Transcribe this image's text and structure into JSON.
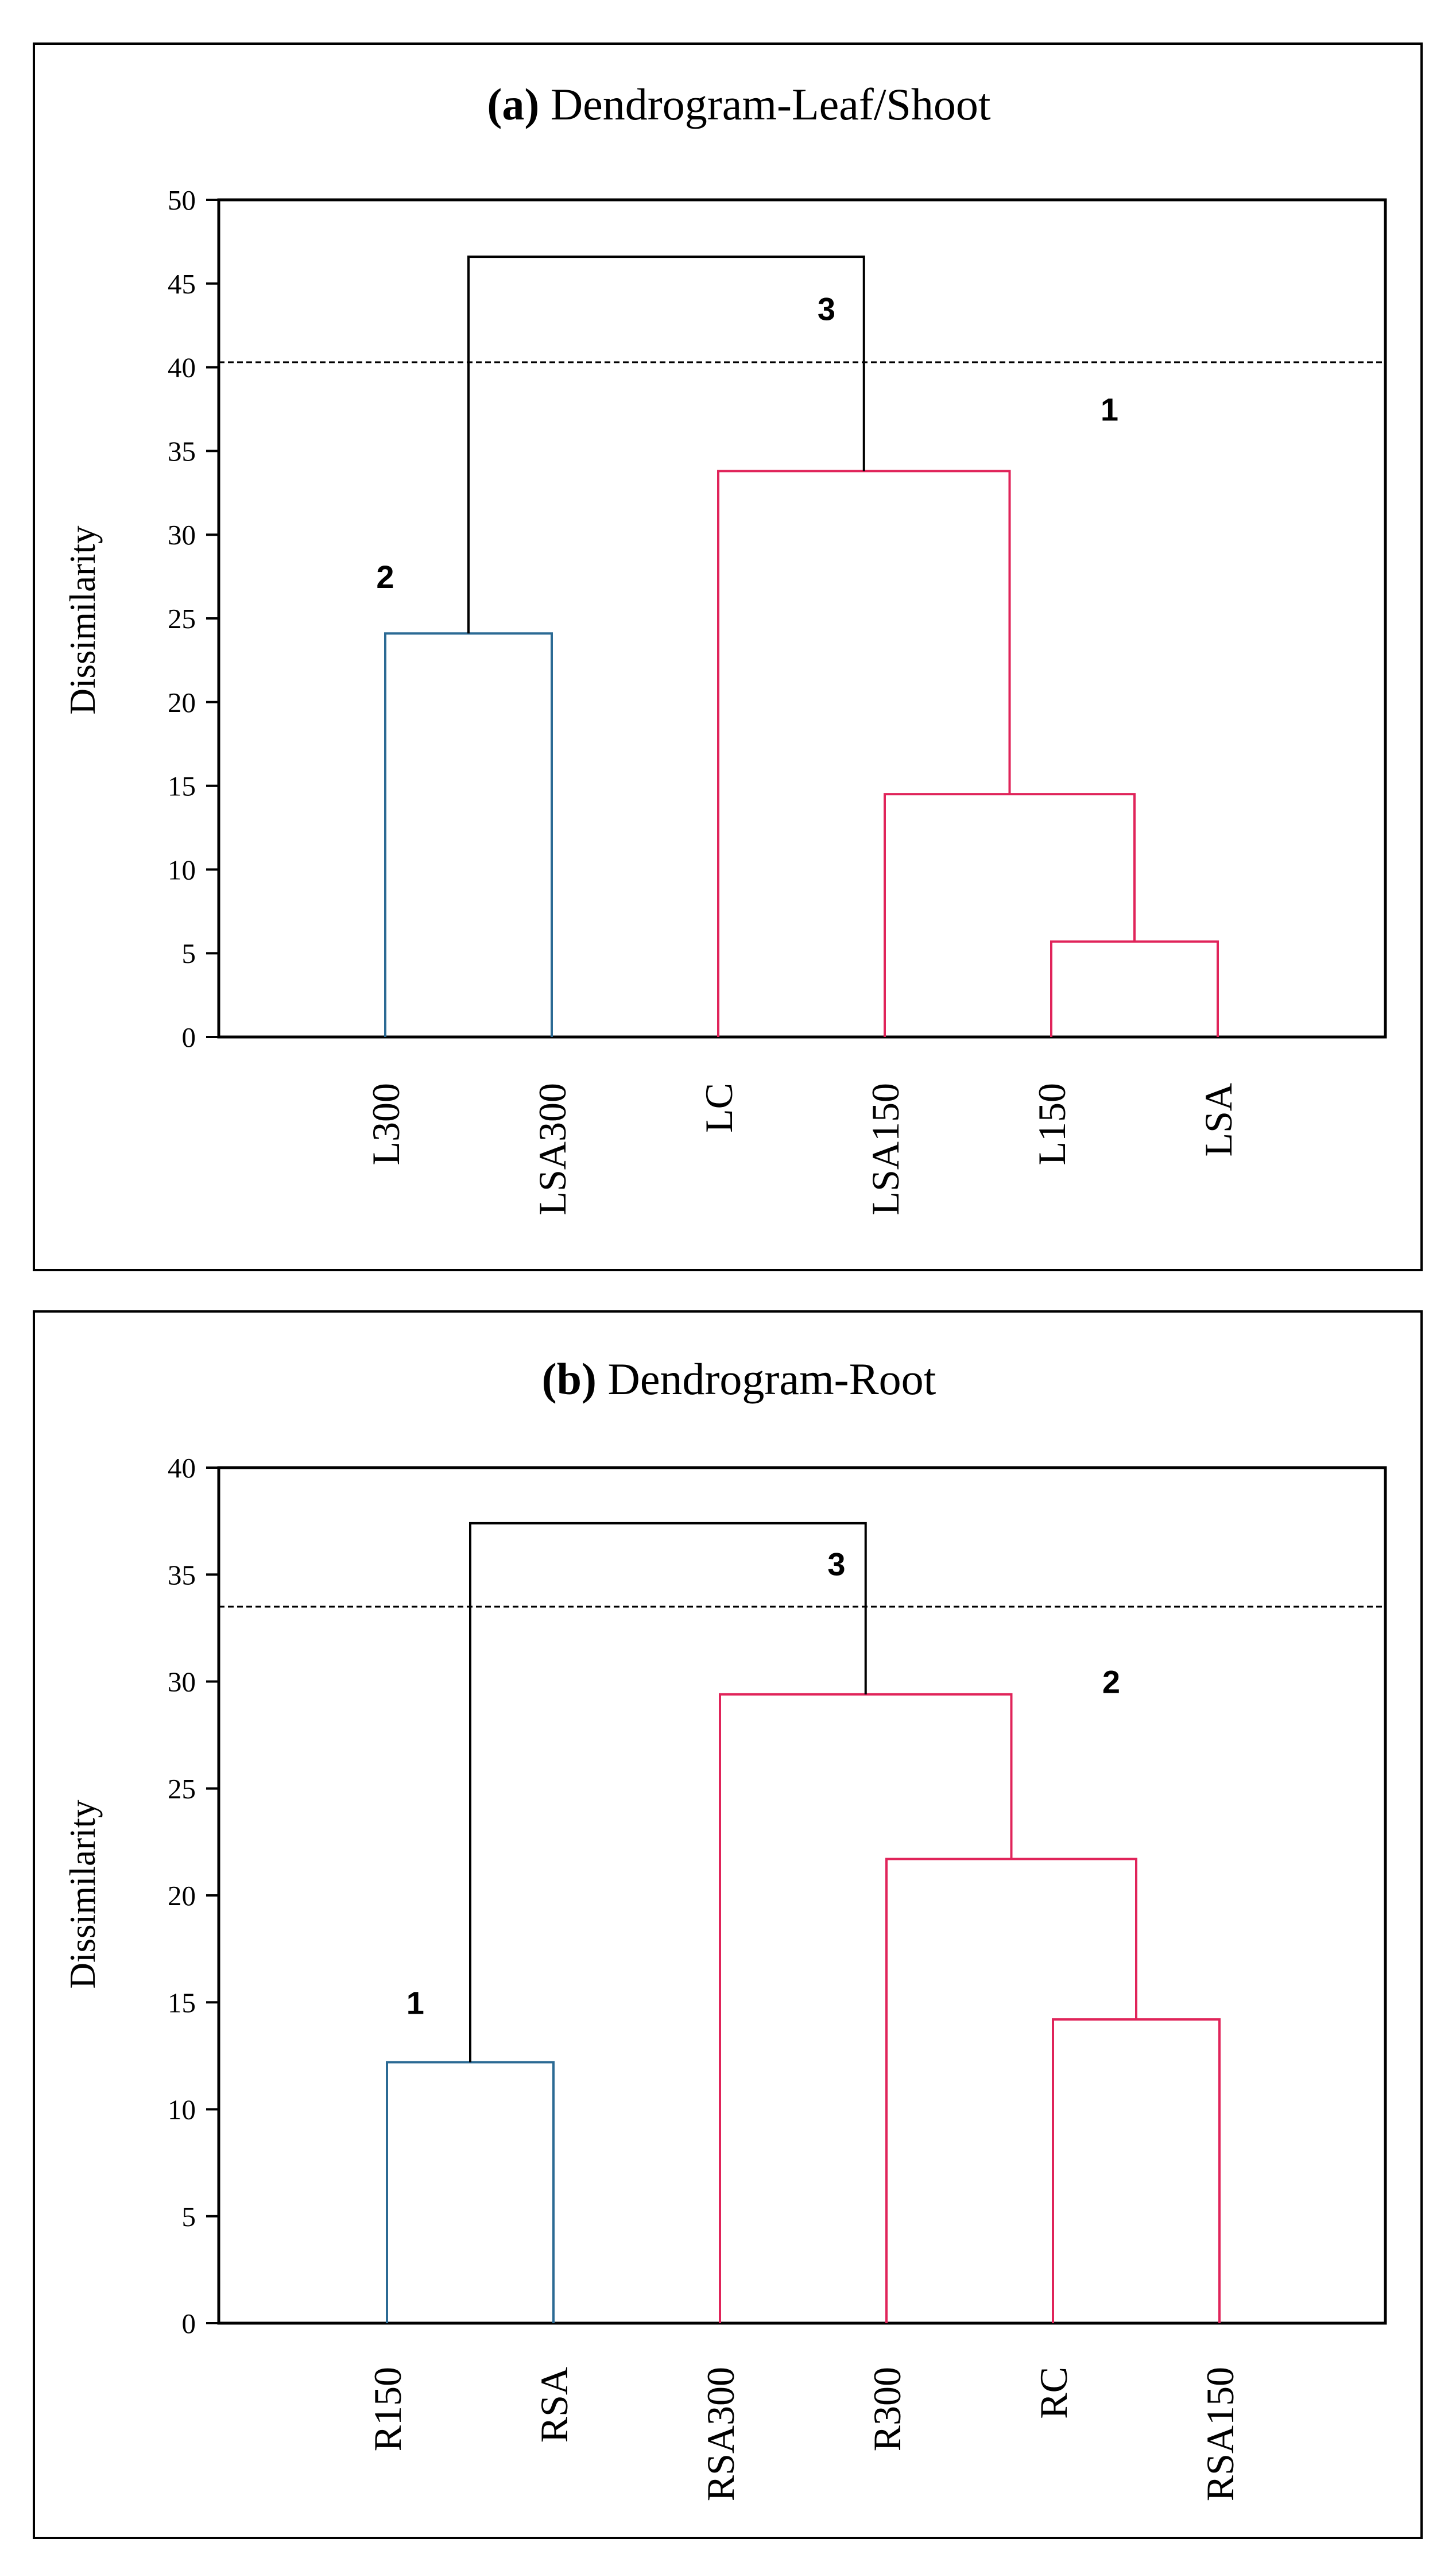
{
  "chart_data": [
    {
      "type": "dendrogram",
      "title_prefix": "(a)",
      "title_rest": " Dendrogram-Leaf/Shoot",
      "ylabel": "Dissimilarity",
      "ylim": [
        0,
        50
      ],
      "yticks": [
        "0",
        "5",
        "10",
        "15",
        "20",
        "25",
        "30",
        "35",
        "40",
        "45",
        "50"
      ],
      "leaves": [
        "L300",
        "LSA300",
        "LC",
        "LSA150",
        "L150",
        "LSA"
      ],
      "cutoff": 40.3,
      "merges": [
        {
          "left": [
            "L150"
          ],
          "right": [
            "LSA"
          ],
          "height": 5.7,
          "cluster": "1"
        },
        {
          "left": [
            "LSA150"
          ],
          "right": [
            "L150",
            "LSA"
          ],
          "height": 14.5,
          "cluster": "1"
        },
        {
          "left": [
            "LC"
          ],
          "right": [
            "LSA150",
            "L150",
            "LSA"
          ],
          "height": 33.8,
          "cluster": "1"
        },
        {
          "left": [
            "L300"
          ],
          "right": [
            "LSA300"
          ],
          "height": 24.1,
          "cluster": "2"
        },
        {
          "left": [
            "L300",
            "LSA300"
          ],
          "right": [
            "LC",
            "LSA150",
            "L150",
            "LSA"
          ],
          "height": 46.6,
          "cluster": "root"
        }
      ],
      "cluster_labels": [
        {
          "text": "3",
          "x_leaf": 2.65,
          "y": 43.5
        },
        {
          "text": "1",
          "x_leaf": 4.35,
          "y": 37.5
        },
        {
          "text": "2",
          "x_leaf": 0.0,
          "y": 27.5
        }
      ],
      "colors": {
        "1": "#e0245a",
        "2": "#2b6a94",
        "root": "#000000"
      }
    },
    {
      "type": "dendrogram",
      "title_prefix": "(b)",
      "title_rest": " Dendrogram-Root",
      "ylabel": "Dissimilarity",
      "ylim": [
        0,
        40
      ],
      "yticks": [
        "0",
        "5",
        "10",
        "15",
        "20",
        "25",
        "30",
        "35",
        "40"
      ],
      "leaves": [
        "R150",
        "RSA",
        "RSA300",
        "R300",
        "RC",
        "RSA150"
      ],
      "cutoff": 33.5,
      "merges": [
        {
          "left": [
            "RC"
          ],
          "right": [
            "RSA150"
          ],
          "height": 14.2,
          "cluster": "2"
        },
        {
          "left": [
            "R300"
          ],
          "right": [
            "RC",
            "RSA150"
          ],
          "height": 21.7,
          "cluster": "2"
        },
        {
          "left": [
            "RSA300"
          ],
          "right": [
            "R300",
            "RC",
            "RSA150"
          ],
          "height": 29.4,
          "cluster": "2"
        },
        {
          "left": [
            "R150"
          ],
          "right": [
            "RSA"
          ],
          "height": 12.2,
          "cluster": "1"
        },
        {
          "left": [
            "R150",
            "RSA"
          ],
          "right": [
            "RSA300",
            "R300",
            "RC",
            "RSA150"
          ],
          "height": 37.4,
          "cluster": "root"
        }
      ],
      "cluster_labels": [
        {
          "text": "3",
          "x_leaf": 2.7,
          "y": 35.5
        },
        {
          "text": "2",
          "x_leaf": 4.35,
          "y": 30.0
        },
        {
          "text": "1",
          "x_leaf": 0.17,
          "y": 15.0
        }
      ],
      "colors": {
        "1": "#2b6a94",
        "2": "#e0245a",
        "root": "#000000"
      }
    }
  ]
}
